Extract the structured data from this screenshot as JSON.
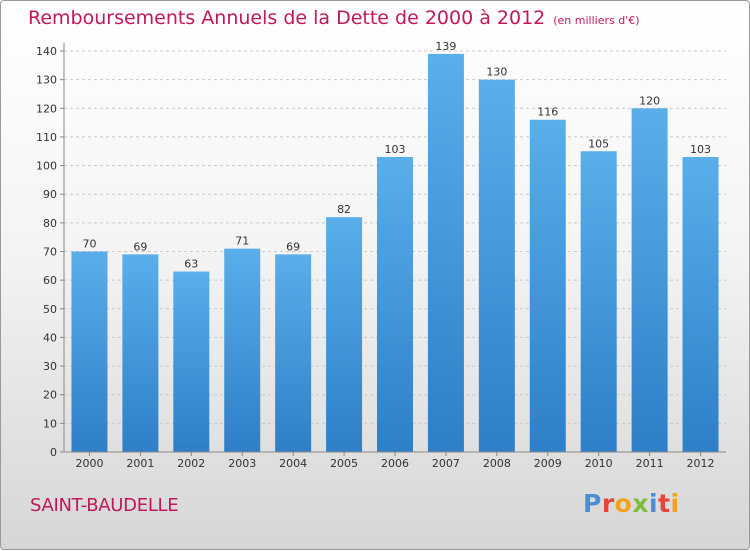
{
  "chart": {
    "title": "Remboursements Annuels de la Dette de 2000 à 2012",
    "subtitle": "(en milliers d'€)"
  },
  "chart_data": {
    "type": "bar",
    "title": "Remboursements Annuels de la Dette de 2000 à 2012",
    "subtitle": "(en milliers d'€)",
    "categories": [
      "2000",
      "2001",
      "2002",
      "2003",
      "2004",
      "2005",
      "2006",
      "2007",
      "2008",
      "2009",
      "2010",
      "2011",
      "2012"
    ],
    "values": [
      70,
      69,
      63,
      71,
      69,
      82,
      103,
      139,
      130,
      116,
      105,
      120,
      103
    ],
    "xlabel": "",
    "ylabel": "",
    "ylim": [
      0,
      140
    ],
    "yticks": [
      0,
      10,
      20,
      30,
      40,
      50,
      60,
      70,
      80,
      90,
      100,
      110,
      120,
      130,
      140
    ],
    "grid": true,
    "bar_color": "#5aaeea",
    "bar_color_dark": "#2e7fc7"
  },
  "footer": {
    "town": "SAINT-BAUDELLE",
    "logo_letters": [
      "P",
      "r",
      "o",
      "x",
      "i",
      "t",
      "i"
    ]
  }
}
